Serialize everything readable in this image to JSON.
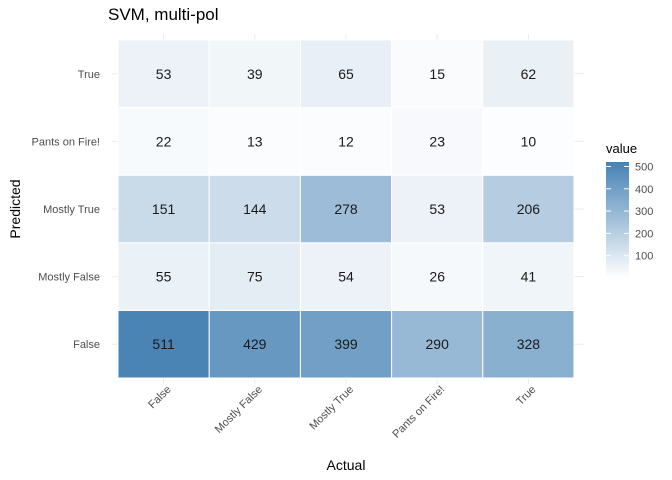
{
  "chart_data": {
    "type": "heatmap",
    "title": "SVM, multi-pol",
    "xlabel": "Actual",
    "ylabel": "Predicted",
    "x_categories": [
      "False",
      "Mostly False",
      "Mostly True",
      "Pants on Fire!",
      "True"
    ],
    "y_categories": [
      "False",
      "Mostly False",
      "Mostly True",
      "Pants on Fire!",
      "True"
    ],
    "values": [
      [
        511,
        429,
        399,
        290,
        328
      ],
      [
        55,
        75,
        54,
        26,
        41
      ],
      [
        151,
        144,
        278,
        53,
        206
      ],
      [
        22,
        13,
        12,
        23,
        10
      ],
      [
        53,
        39,
        65,
        15,
        62
      ]
    ],
    "color_low": "#ffffff",
    "color_high": "#4682b4",
    "value_range": [
      0,
      520
    ],
    "legend": {
      "title": "value",
      "ticks": [
        100,
        200,
        300,
        400,
        500
      ],
      "position": "right"
    }
  }
}
